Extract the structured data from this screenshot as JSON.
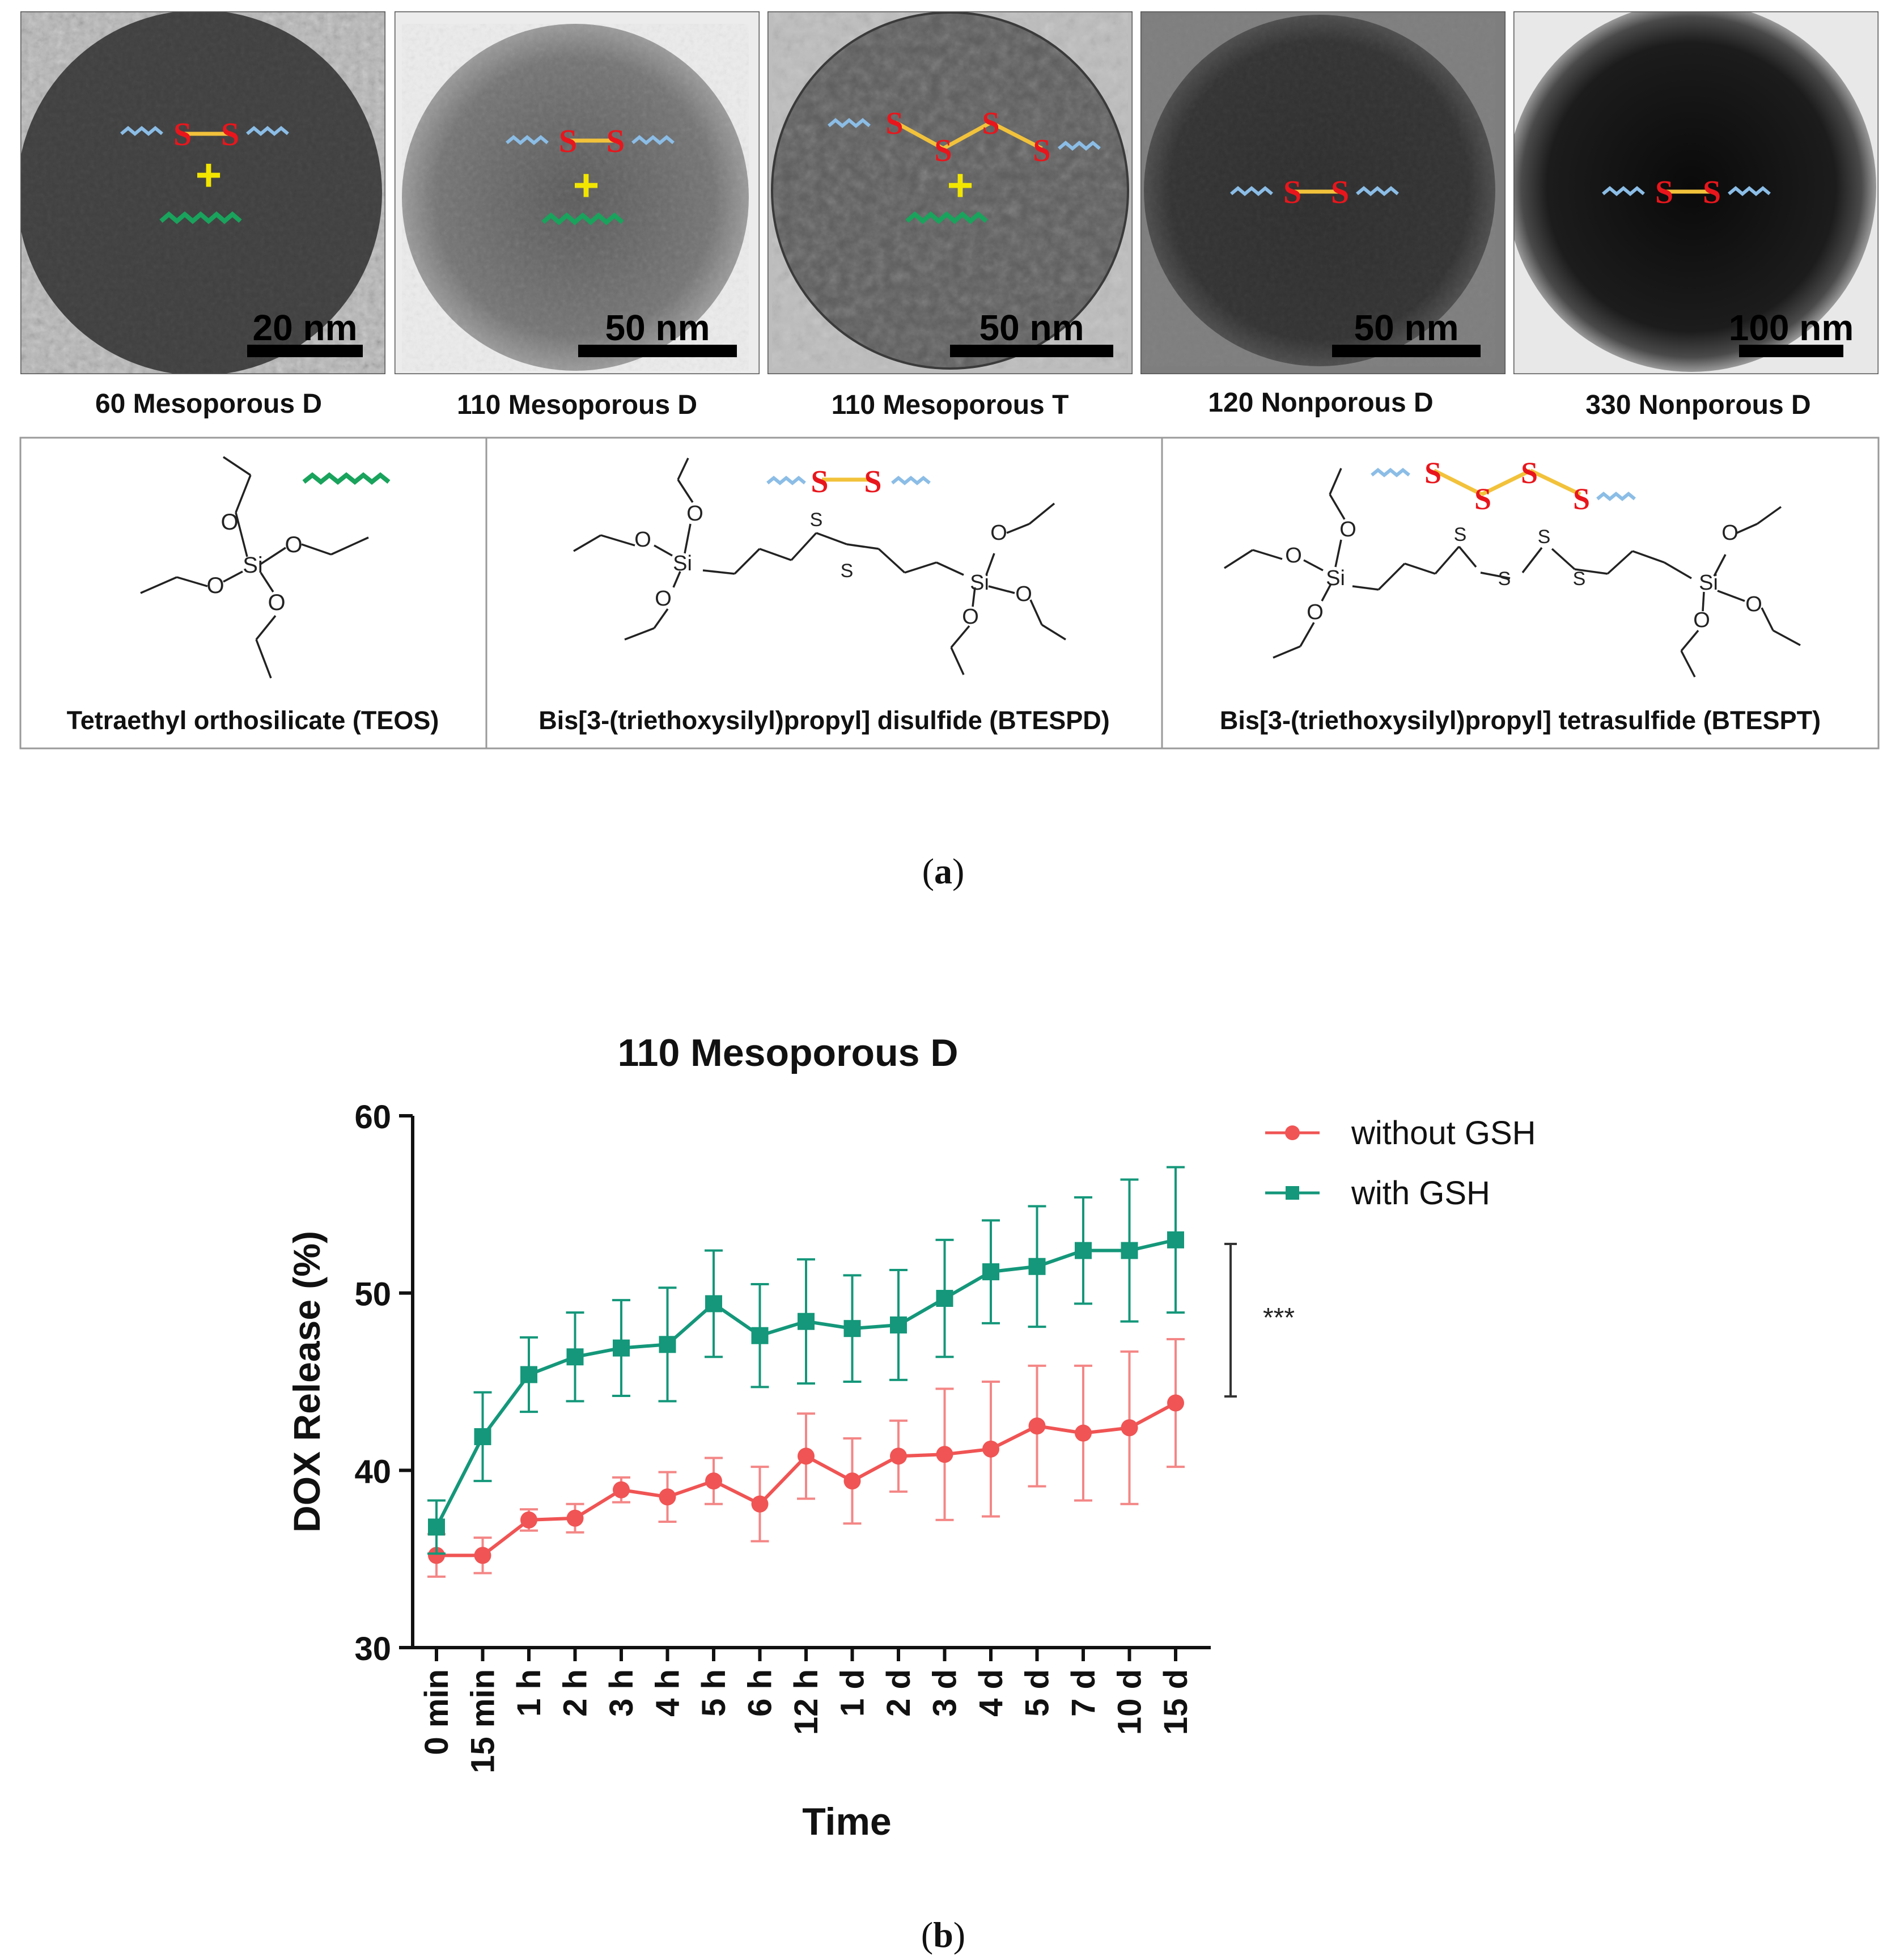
{
  "panel_a": {
    "caption_open": "(",
    "caption_letter": "a",
    "caption_close": ")",
    "tem_images": [
      {
        "name": "60 Mesoporous D",
        "scale": "20 nm"
      },
      {
        "name": "110 Mesoporous D",
        "scale": "50 nm"
      },
      {
        "name": "110 Mesoporous T",
        "scale": "50 nm"
      },
      {
        "name": "120 Nonporous D",
        "scale": "50 nm"
      },
      {
        "name": "330 Nonporous D",
        "scale": "100 nm"
      }
    ],
    "icons": {
      "S": "S",
      "plus": "+"
    },
    "structures": {
      "O": "O",
      "Si": "Si",
      "S": "S",
      "teos": "Tetraethyl orthosilicate (TEOS)",
      "btespd": "Bis[3-(triethoxysilyl)propyl] disulfide (BTESPD)",
      "btespt": "Bis[3-(triethoxysilyl)propyl] tetrasulfide (BTESPT)"
    }
  },
  "panel_b": {
    "caption_open": "(",
    "caption_letter": "b",
    "caption_close": ")"
  },
  "colors": {
    "without_gsh": "#f05454",
    "with_gsh": "#14977a",
    "sulfur": "#e8161c",
    "bond": "#f2c23b",
    "blue_chain": "#8bbde6",
    "green_chain": "#19a35c",
    "plus": "#f2e600"
  },
  "chart_data": {
    "type": "line",
    "title": "110 Mesoporous D",
    "xlabel": "Time",
    "ylabel": "DOX Release (%)",
    "ylim": [
      30,
      60
    ],
    "yticks": [
      30,
      40,
      50,
      60
    ],
    "categories": [
      "0 min",
      "15 min",
      "1 h",
      "2 h",
      "3 h",
      "4 h",
      "5 h",
      "6 h",
      "12 h",
      "1 d",
      "2 d",
      "3 d",
      "4 d",
      "5 d",
      "7 d",
      "10 d",
      "15 d"
    ],
    "series": [
      {
        "name": "without GSH",
        "marker": "circle",
        "values": [
          35.2,
          35.2,
          37.2,
          37.3,
          38.9,
          38.5,
          39.4,
          38.1,
          40.8,
          39.4,
          40.8,
          40.9,
          41.2,
          42.5,
          42.1,
          42.4,
          43.8
        ],
        "errors": [
          1.2,
          1.0,
          0.6,
          0.8,
          0.7,
          1.4,
          1.3,
          2.1,
          2.4,
          2.4,
          2.0,
          3.7,
          3.8,
          3.4,
          3.8,
          4.3,
          3.6
        ]
      },
      {
        "name": "with GSH",
        "marker": "square",
        "values": [
          36.8,
          41.9,
          45.4,
          46.4,
          46.9,
          47.1,
          49.4,
          47.6,
          48.4,
          48.0,
          48.2,
          49.7,
          51.2,
          51.5,
          52.4,
          52.4,
          53.0
        ],
        "errors": [
          1.5,
          2.5,
          2.1,
          2.5,
          2.7,
          3.2,
          3.0,
          2.9,
          3.5,
          3.0,
          3.1,
          3.3,
          2.9,
          3.4,
          3.0,
          4.0,
          4.1
        ]
      }
    ],
    "significance": "***",
    "legend_position": "top-right"
  }
}
